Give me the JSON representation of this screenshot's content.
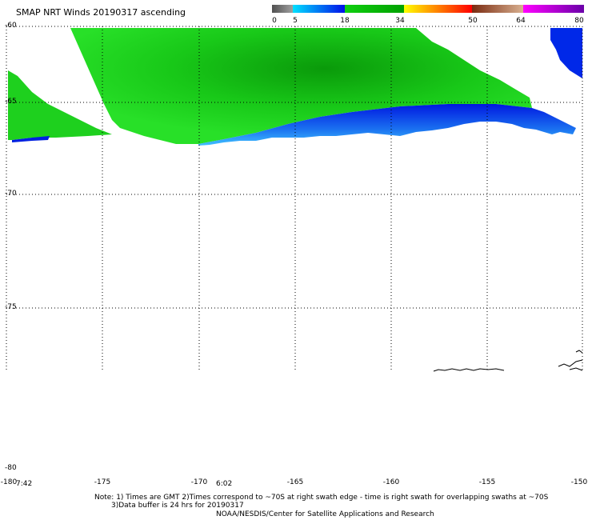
{
  "title": "SMAP NRT Winds 20190317 ascending",
  "colorbar": {
    "labels": [
      "0",
      "5",
      "18",
      "34",
      "50",
      "64",
      "80"
    ],
    "segments": [
      {
        "from": 0,
        "to": 5,
        "colors": [
          "#505050",
          "#a0a0a0"
        ]
      },
      {
        "from": 5,
        "to": 18,
        "colors": [
          "#00e0ff",
          "#0010e8"
        ]
      },
      {
        "from": 18,
        "to": 34,
        "colors": [
          "#10d010",
          "#00a000"
        ]
      },
      {
        "from": 34,
        "to": 50,
        "colors": [
          "#ffff00",
          "#ff0000"
        ]
      },
      {
        "from": 50,
        "to": 64,
        "colors": [
          "#8b3a1a",
          "#d0a080"
        ]
      },
      {
        "from": 64,
        "to": 80,
        "colors": [
          "#ff00ff",
          "#7000b0"
        ]
      }
    ]
  },
  "lat_labels": [
    "-60",
    "-65",
    "-70",
    "-75",
    "-80"
  ],
  "lon_labels": [
    "-180",
    "-175",
    "-170",
    "-165",
    "-160",
    "-155",
    "-150"
  ],
  "time_labels": [
    "7:42",
    "6:02"
  ],
  "note": {
    "line1": "Note: 1) Times are GMT 2)Times correspond to ~70S at right swath edge - time is right swath for overlapping swaths at ~70S",
    "line2": "3)Data buffer is 24 hrs for 20190317",
    "line3": "NOAA/NESDIS/Center for Satellite Applications and Research"
  },
  "colors": {
    "green_light": "#22e022",
    "green_dark": "#0a9a0a",
    "blue_light": "#3ab8ff",
    "blue_dark": "#0018e0"
  }
}
